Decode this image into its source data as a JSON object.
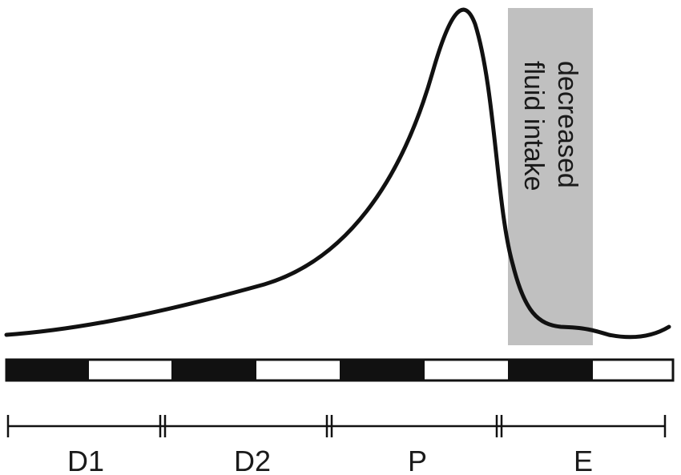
{
  "annotation": {
    "line1": "decreased",
    "line2": "fluid intake",
    "fill_color": "#c0c0c0"
  },
  "curve": {
    "stroke_color": "#111111"
  },
  "light_dark_bar": {
    "segments": [
      "dark",
      "light",
      "dark",
      "light",
      "dark",
      "light",
      "dark",
      "light"
    ],
    "dark_color": "#111111",
    "light_color": "#ffffff"
  },
  "phases": [
    {
      "label": "D1"
    },
    {
      "label": "D2"
    },
    {
      "label": "P"
    },
    {
      "label": "E"
    }
  ]
}
